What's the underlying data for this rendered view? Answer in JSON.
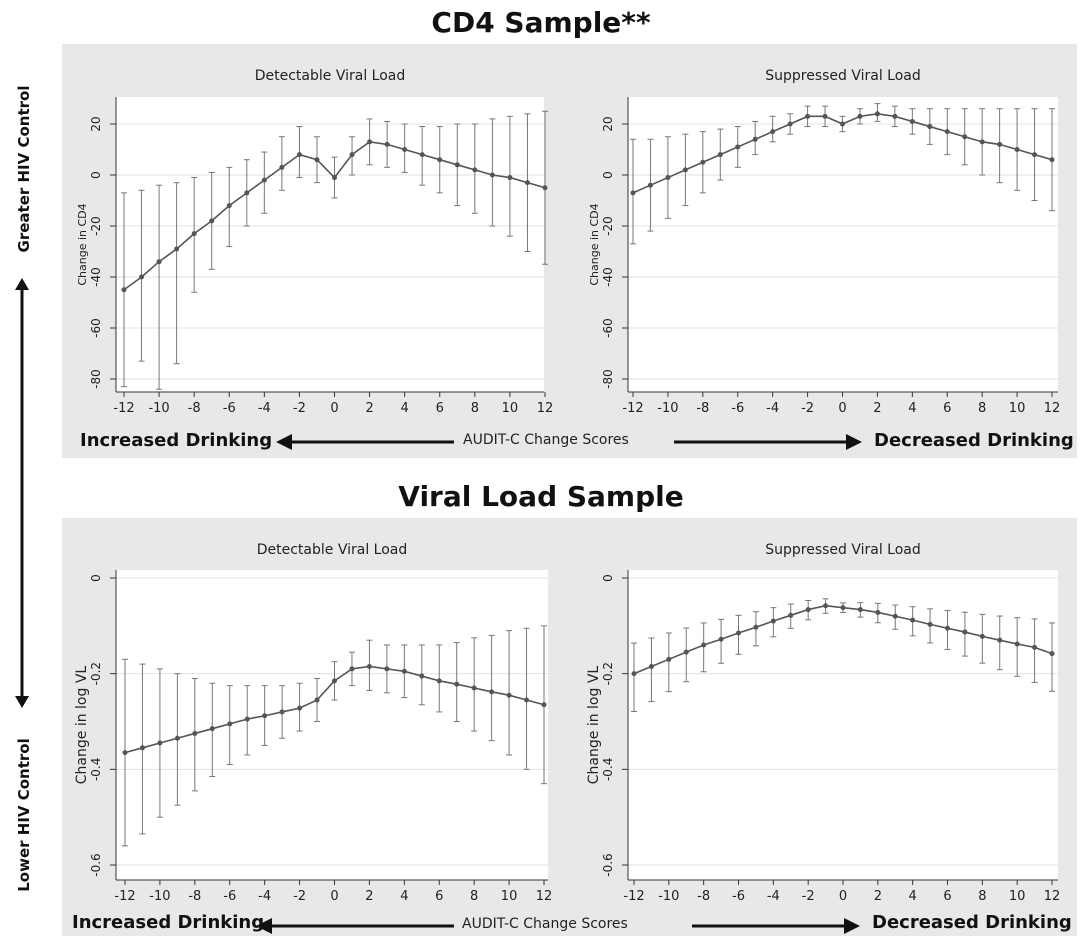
{
  "sections": {
    "top_title": "CD4 Sample**",
    "bottom_title": "Viral Load Sample"
  },
  "side_labels": {
    "top": "Greater HIV Control",
    "bottom": "Lower HIV Control"
  },
  "bottom_axis": {
    "left_label": "Increased Drinking",
    "center_label": "AUDIT-C Change Scores",
    "right_label": "Decreased Drinking"
  },
  "colors": {
    "panel_background": "#e8e8e8",
    "plot_background": "#ffffff",
    "series": "#555555",
    "grid": "#e3e3e3"
  },
  "chart_data": [
    {
      "type": "line",
      "title": "Detectable Viral Load",
      "ylabel": "Change in CD4",
      "xlabel": "",
      "ylim": [
        -80,
        20
      ],
      "yticks": [
        20,
        0,
        -20,
        -40,
        -60,
        -80
      ],
      "xlim": [
        -12,
        12
      ],
      "xticks": [
        -12,
        -10,
        -8,
        -6,
        -4,
        -2,
        0,
        2,
        4,
        6,
        8,
        10,
        12
      ],
      "grid": true,
      "series": [
        {
          "x": [
            -12,
            -11,
            -10,
            -9,
            -8,
            -7,
            -6,
            -5,
            -4,
            -3,
            -2,
            -1,
            0,
            1,
            2,
            3,
            4,
            5,
            6,
            7,
            8,
            9,
            10,
            11,
            12
          ],
          "y": [
            -45,
            -40,
            -34,
            -29,
            -23,
            -18,
            -12,
            -7,
            -2,
            3,
            8,
            6,
            -1,
            8,
            13,
            12,
            10,
            8,
            6,
            4,
            2,
            0,
            -1,
            -3,
            -5
          ],
          "lower": [
            -83,
            -73,
            -84,
            -74,
            -46,
            -37,
            -28,
            -20,
            -15,
            -6,
            -1,
            -3,
            -9,
            0,
            4,
            3,
            1,
            -4,
            -7,
            -12,
            -15,
            -20,
            -24,
            -30,
            -35
          ],
          "upper": [
            -7,
            -6,
            -4,
            -3,
            -1,
            1,
            3,
            6,
            9,
            15,
            19,
            15,
            7,
            15,
            22,
            21,
            20,
            19,
            19,
            20,
            20,
            22,
            23,
            24,
            25
          ]
        }
      ]
    },
    {
      "type": "line",
      "title": "Suppressed Viral Load",
      "ylabel": "Change in CD4",
      "xlabel": "",
      "ylim": [
        -80,
        20
      ],
      "yticks": [
        20,
        0,
        -20,
        -40,
        -60,
        -80
      ],
      "xlim": [
        -12,
        12
      ],
      "xticks": [
        -12,
        -10,
        -8,
        -6,
        -4,
        -2,
        0,
        2,
        4,
        6,
        8,
        10,
        12
      ],
      "grid": true,
      "series": [
        {
          "x": [
            -12,
            -11,
            -10,
            -9,
            -8,
            -7,
            -6,
            -5,
            -4,
            -3,
            -2,
            -1,
            0,
            1,
            2,
            3,
            4,
            5,
            6,
            7,
            8,
            9,
            10,
            11,
            12
          ],
          "y": [
            -7,
            -4,
            -1,
            2,
            5,
            8,
            11,
            14,
            17,
            20,
            23,
            23,
            20,
            23,
            24,
            23,
            21,
            19,
            17,
            15,
            13,
            12,
            10,
            8,
            6
          ],
          "lower": [
            -27,
            -22,
            -17,
            -12,
            -7,
            -2,
            3,
            8,
            13,
            16,
            19,
            19,
            17,
            20,
            21,
            19,
            16,
            12,
            8,
            4,
            0,
            -3,
            -6,
            -10,
            -14
          ],
          "upper": [
            14,
            14,
            15,
            16,
            17,
            18,
            19,
            21,
            23,
            24,
            27,
            27,
            23,
            26,
            28,
            27,
            26,
            26,
            26,
            26,
            26,
            26,
            26,
            26,
            26
          ]
        }
      ]
    },
    {
      "type": "line",
      "title": "Detectable Viral Load",
      "ylabel": "Change in log VL",
      "xlabel": "",
      "ylim": [
        -0.6,
        0
      ],
      "yticks": [
        0,
        -0.2,
        -0.4,
        -0.6
      ],
      "ytick_labels": [
        "0",
        "-0.2",
        "-0.4",
        "-0.6"
      ],
      "xlim": [
        -12,
        12
      ],
      "xticks": [
        -12,
        -10,
        -8,
        -6,
        -4,
        -2,
        0,
        2,
        4,
        6,
        8,
        10,
        12
      ],
      "grid": true,
      "series": [
        {
          "x": [
            -12,
            -11,
            -10,
            -9,
            -8,
            -7,
            -6,
            -5,
            -4,
            -3,
            -2,
            -1,
            0,
            1,
            2,
            3,
            4,
            5,
            6,
            7,
            8,
            9,
            10,
            11,
            12
          ],
          "y": [
            -0.365,
            -0.355,
            -0.345,
            -0.335,
            -0.325,
            -0.315,
            -0.305,
            -0.295,
            -0.288,
            -0.28,
            -0.272,
            -0.255,
            -0.215,
            -0.19,
            -0.185,
            -0.19,
            -0.195,
            -0.205,
            -0.215,
            -0.222,
            -0.23,
            -0.238,
            -0.245,
            -0.255,
            -0.265
          ],
          "lower": [
            -0.56,
            -0.535,
            -0.5,
            -0.475,
            -0.445,
            -0.415,
            -0.39,
            -0.37,
            -0.35,
            -0.335,
            -0.32,
            -0.3,
            -0.255,
            -0.225,
            -0.235,
            -0.24,
            -0.25,
            -0.265,
            -0.28,
            -0.3,
            -0.32,
            -0.34,
            -0.37,
            -0.4,
            -0.43
          ],
          "upper": [
            -0.17,
            -0.18,
            -0.19,
            -0.2,
            -0.21,
            -0.22,
            -0.225,
            -0.225,
            -0.225,
            -0.225,
            -0.22,
            -0.21,
            -0.175,
            -0.155,
            -0.13,
            -0.14,
            -0.14,
            -0.14,
            -0.14,
            -0.135,
            -0.125,
            -0.12,
            -0.11,
            -0.105,
            -0.1
          ]
        }
      ]
    },
    {
      "type": "line",
      "title": "Suppressed Viral Load",
      "ylabel": "Change in log VL",
      "xlabel": "",
      "ylim": [
        -0.6,
        0
      ],
      "yticks": [
        0,
        -0.2,
        -0.4,
        -0.6
      ],
      "ytick_labels": [
        "0",
        "-0.2",
        "-0.4",
        "-0.6"
      ],
      "xlim": [
        -12,
        12
      ],
      "xticks": [
        -12,
        -10,
        -8,
        -6,
        -4,
        -2,
        0,
        2,
        4,
        6,
        8,
        10,
        12
      ],
      "grid": true,
      "series": [
        {
          "x": [
            -12,
            -11,
            -10,
            -9,
            -8,
            -7,
            -6,
            -5,
            -4,
            -3,
            -2,
            -1,
            0,
            1,
            2,
            3,
            4,
            5,
            6,
            7,
            8,
            9,
            10,
            11,
            12
          ],
          "y": [
            -0.2,
            -0.185,
            -0.17,
            -0.155,
            -0.14,
            -0.128,
            -0.115,
            -0.103,
            -0.09,
            -0.078,
            -0.066,
            -0.058,
            -0.062,
            -0.066,
            -0.072,
            -0.08,
            -0.088,
            -0.097,
            -0.105,
            -0.113,
            -0.122,
            -0.13,
            -0.138,
            -0.145,
            -0.158
          ]
        }
      ]
    }
  ]
}
